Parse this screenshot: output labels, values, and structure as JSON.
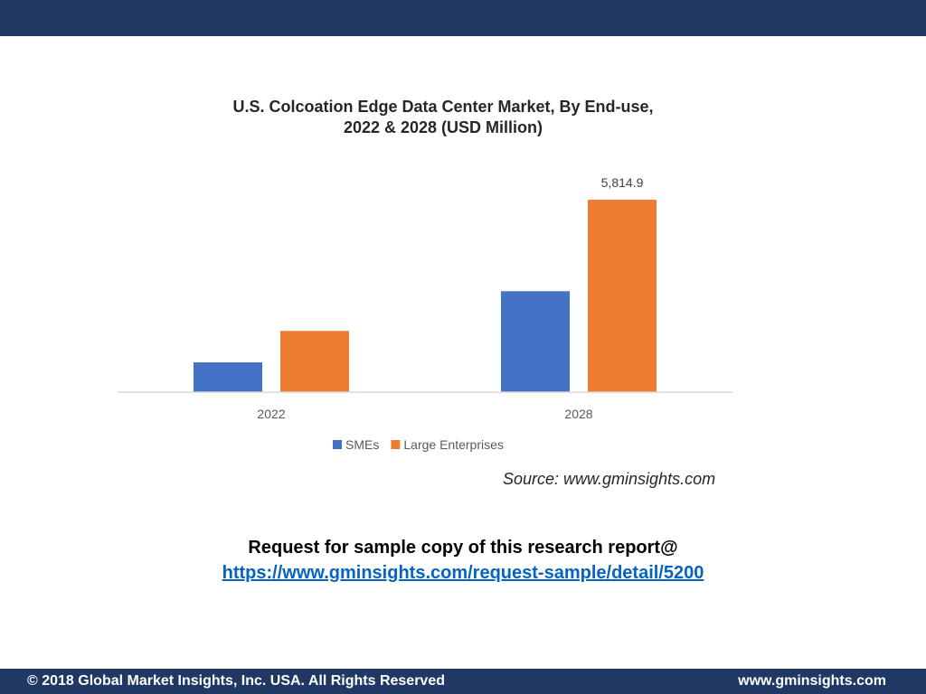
{
  "chart_data": {
    "type": "bar",
    "title_lines": [
      "U.S. Colcoation Edge Data Center Market, By End-use,",
      "2022 & 2028 (USD Million)"
    ],
    "categories": [
      "2022",
      "2028"
    ],
    "series": [
      {
        "name": "SMEs",
        "color": "#4472c4",
        "values": [
          900,
          3050
        ]
      },
      {
        "name": "Large Enterprises",
        "color": "#ed7d31",
        "values": [
          1850,
          5814.9
        ]
      }
    ],
    "data_labels": [
      {
        "series": 1,
        "index": 1,
        "text": "5,814.9"
      }
    ],
    "ylim": [
      0,
      5814.9
    ],
    "grid": false,
    "legend_position": "bottom"
  },
  "source_text": "Source: www.gminsights.com",
  "cta": {
    "text": "Request for sample copy of this research report@",
    "link": "https://www.gminsights.com/request-sample/detail/5200"
  },
  "footer": {
    "copyright": "© 2018 Global Market Insights, Inc. USA. All Rights Reserved",
    "website": "www.gminsights.com"
  },
  "colors": {
    "brand_bar": "#1f3864"
  }
}
